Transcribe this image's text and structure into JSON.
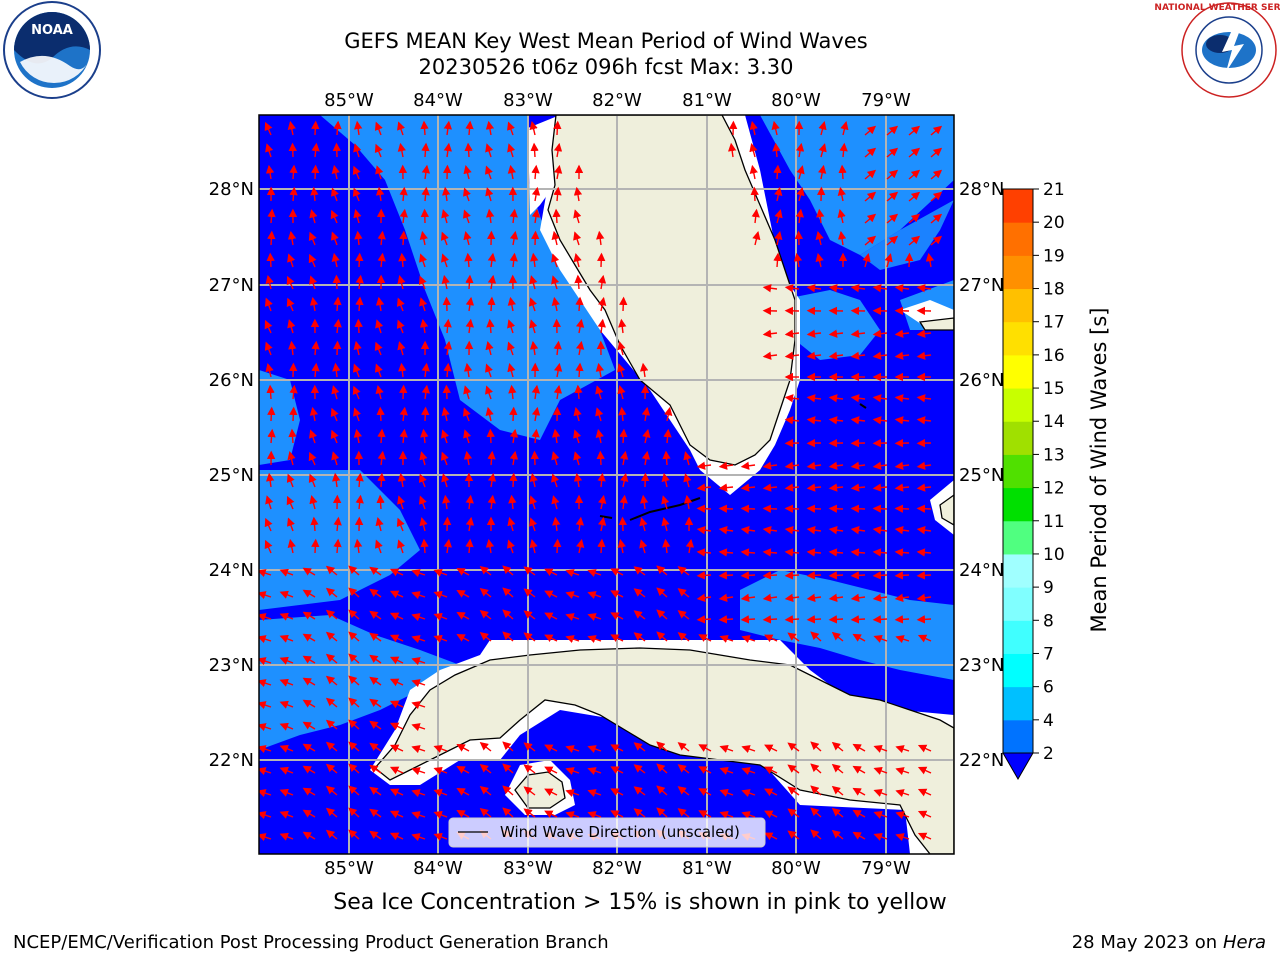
{
  "title": {
    "line1": "GEFS MEAN Key West Mean Period of Wind Waves",
    "line2": "20230526 t06z 096h fcst   Max: 3.30"
  },
  "note": "Sea Ice Concentration > 15% is shown in pink to yellow",
  "footer": {
    "left": "NCEP/EMC/Verification Post Processing Product Generation Branch",
    "date": "28 May 2023 on",
    "host": "Hera"
  },
  "logos": {
    "left": "NOAA",
    "right": "NATIONAL WEATHER SERVICE"
  },
  "legend": {
    "label": "Wind Wave Direction (unscaled)"
  },
  "map": {
    "lon_range": [
      -86.0,
      -78.3
    ],
    "lat_range": [
      21.0,
      28.8
    ],
    "lon_ticks": [
      "85°W",
      "84°W",
      "83°W",
      "82°W",
      "81°W",
      "80°W",
      "79°W"
    ],
    "lat_ticks": [
      "22°N",
      "23°N",
      "24°N",
      "25°N",
      "26°N",
      "27°N",
      "28°N"
    ],
    "colors": {
      "land": "#efefdc",
      "period_2_4": "#0000ff",
      "period_4_6": "#1e90ff",
      "arrow": "#ff0000",
      "grid": "#b4b4b4"
    }
  },
  "colorbar": {
    "label": "Mean Period of Wind Waves [s]",
    "ticks": [
      "2",
      "4",
      "6",
      "7",
      "8",
      "9",
      "10",
      "11",
      "12",
      "13",
      "14",
      "15",
      "16",
      "17",
      "18",
      "19",
      "20",
      "21"
    ],
    "colors": [
      "#0073ff",
      "#00c0ff",
      "#00ffff",
      "#40ffff",
      "#80ffff",
      "#a0ffff",
      "#50ff80",
      "#00e000",
      "#50e000",
      "#a0e000",
      "#c8ff00",
      "#ffff00",
      "#ffe000",
      "#ffc000",
      "#ff9000",
      "#ff7000",
      "#ff4000",
      "#ff0000"
    ]
  }
}
